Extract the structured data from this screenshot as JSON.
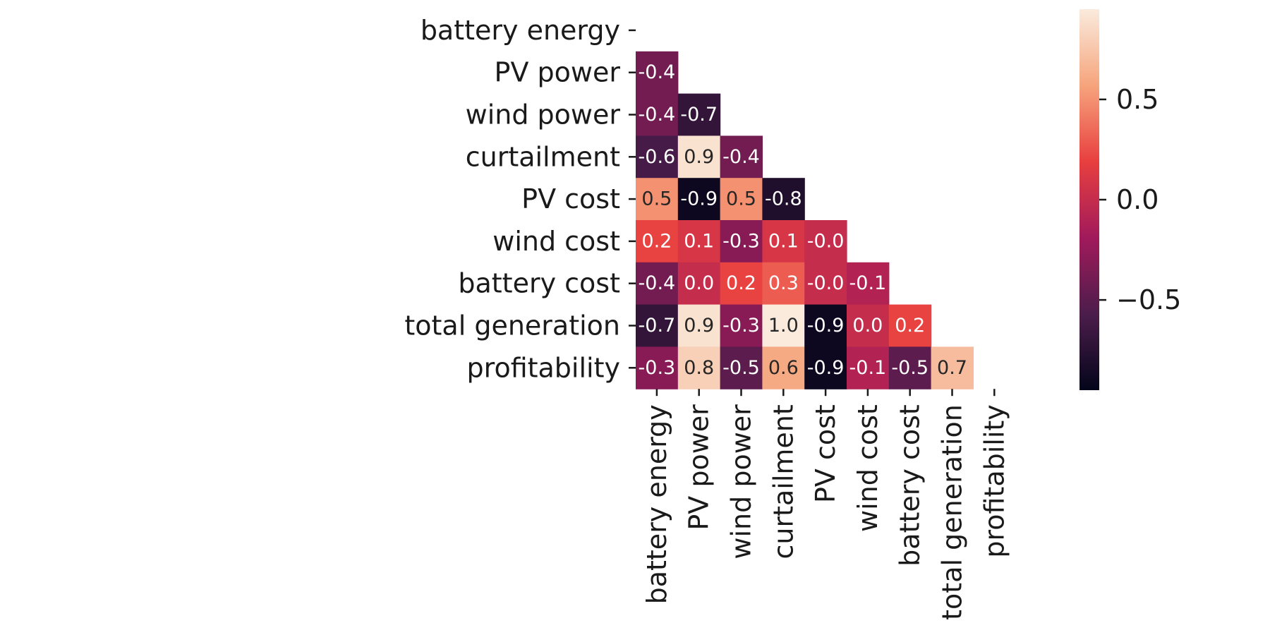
{
  "chart_data": {
    "type": "heatmap",
    "variables": [
      "battery energy",
      "PV power",
      "wind power",
      "curtailment",
      "PV cost",
      "wind cost",
      "battery cost",
      "total generation",
      "profitability"
    ],
    "mask": "upper-triangle-including-diagonal",
    "cells": [
      {
        "row": "PV power",
        "col": "battery energy",
        "value": -0.4,
        "label": "-0.4"
      },
      {
        "row": "wind power",
        "col": "battery energy",
        "value": -0.4,
        "label": "-0.4"
      },
      {
        "row": "wind power",
        "col": "PV power",
        "value": -0.7,
        "label": "-0.7"
      },
      {
        "row": "curtailment",
        "col": "battery energy",
        "value": -0.6,
        "label": "-0.6"
      },
      {
        "row": "curtailment",
        "col": "PV power",
        "value": 0.9,
        "label": "0.9"
      },
      {
        "row": "curtailment",
        "col": "wind power",
        "value": -0.4,
        "label": "-0.4"
      },
      {
        "row": "PV cost",
        "col": "battery energy",
        "value": 0.5,
        "label": "0.5"
      },
      {
        "row": "PV cost",
        "col": "PV power",
        "value": -0.9,
        "label": "-0.9"
      },
      {
        "row": "PV cost",
        "col": "wind power",
        "value": 0.5,
        "label": "0.5"
      },
      {
        "row": "PV cost",
        "col": "curtailment",
        "value": -0.8,
        "label": "-0.8"
      },
      {
        "row": "wind cost",
        "col": "battery energy",
        "value": 0.2,
        "label": "0.2"
      },
      {
        "row": "wind cost",
        "col": "PV power",
        "value": 0.1,
        "label": "0.1"
      },
      {
        "row": "wind cost",
        "col": "wind power",
        "value": -0.3,
        "label": "-0.3"
      },
      {
        "row": "wind cost",
        "col": "curtailment",
        "value": 0.1,
        "label": "0.1"
      },
      {
        "row": "wind cost",
        "col": "PV cost",
        "value": -0.0,
        "label": "-0.0"
      },
      {
        "row": "battery cost",
        "col": "battery energy",
        "value": -0.4,
        "label": "-0.4"
      },
      {
        "row": "battery cost",
        "col": "PV power",
        "value": 0.0,
        "label": "0.0"
      },
      {
        "row": "battery cost",
        "col": "wind power",
        "value": 0.2,
        "label": "0.2"
      },
      {
        "row": "battery cost",
        "col": "curtailment",
        "value": 0.3,
        "label": "0.3"
      },
      {
        "row": "battery cost",
        "col": "PV cost",
        "value": -0.0,
        "label": "-0.0"
      },
      {
        "row": "battery cost",
        "col": "wind cost",
        "value": -0.1,
        "label": "-0.1"
      },
      {
        "row": "total generation",
        "col": "battery energy",
        "value": -0.7,
        "label": "-0.7"
      },
      {
        "row": "total generation",
        "col": "PV power",
        "value": 0.9,
        "label": "0.9"
      },
      {
        "row": "total generation",
        "col": "wind power",
        "value": -0.3,
        "label": "-0.3"
      },
      {
        "row": "total generation",
        "col": "curtailment",
        "value": 1.0,
        "label": "1.0"
      },
      {
        "row": "total generation",
        "col": "PV cost",
        "value": -0.9,
        "label": "-0.9"
      },
      {
        "row": "total generation",
        "col": "wind cost",
        "value": 0.0,
        "label": "0.0"
      },
      {
        "row": "total generation",
        "col": "battery cost",
        "value": 0.2,
        "label": "0.2"
      },
      {
        "row": "profitability",
        "col": "battery energy",
        "value": -0.3,
        "label": "-0.3"
      },
      {
        "row": "profitability",
        "col": "PV power",
        "value": 0.8,
        "label": "0.8"
      },
      {
        "row": "profitability",
        "col": "wind power",
        "value": -0.5,
        "label": "-0.5"
      },
      {
        "row": "profitability",
        "col": "curtailment",
        "value": 0.6,
        "label": "0.6"
      },
      {
        "row": "profitability",
        "col": "PV cost",
        "value": -0.9,
        "label": "-0.9"
      },
      {
        "row": "profitability",
        "col": "wind cost",
        "value": -0.1,
        "label": "-0.1"
      },
      {
        "row": "profitability",
        "col": "battery cost",
        "value": -0.5,
        "label": "-0.5"
      },
      {
        "row": "profitability",
        "col": "total generation",
        "value": 0.7,
        "label": "0.7"
      }
    ],
    "colorbar": {
      "colormap": "rocket",
      "range": [
        -0.95,
        0.95
      ],
      "ticks": [
        {
          "value": 0.5,
          "label": "0.5"
        },
        {
          "value": 0.0,
          "label": "0.0"
        },
        {
          "value": -0.5,
          "label": "−0.5"
        }
      ]
    },
    "colors": {
      "colormap_stops": [
        "#03051a",
        "#4c1d4b",
        "#a11a5b",
        "#e83f3f",
        "#f6a47c",
        "#faebdd"
      ],
      "text_light": "#ffffff",
      "text_dark": "#262626"
    }
  }
}
